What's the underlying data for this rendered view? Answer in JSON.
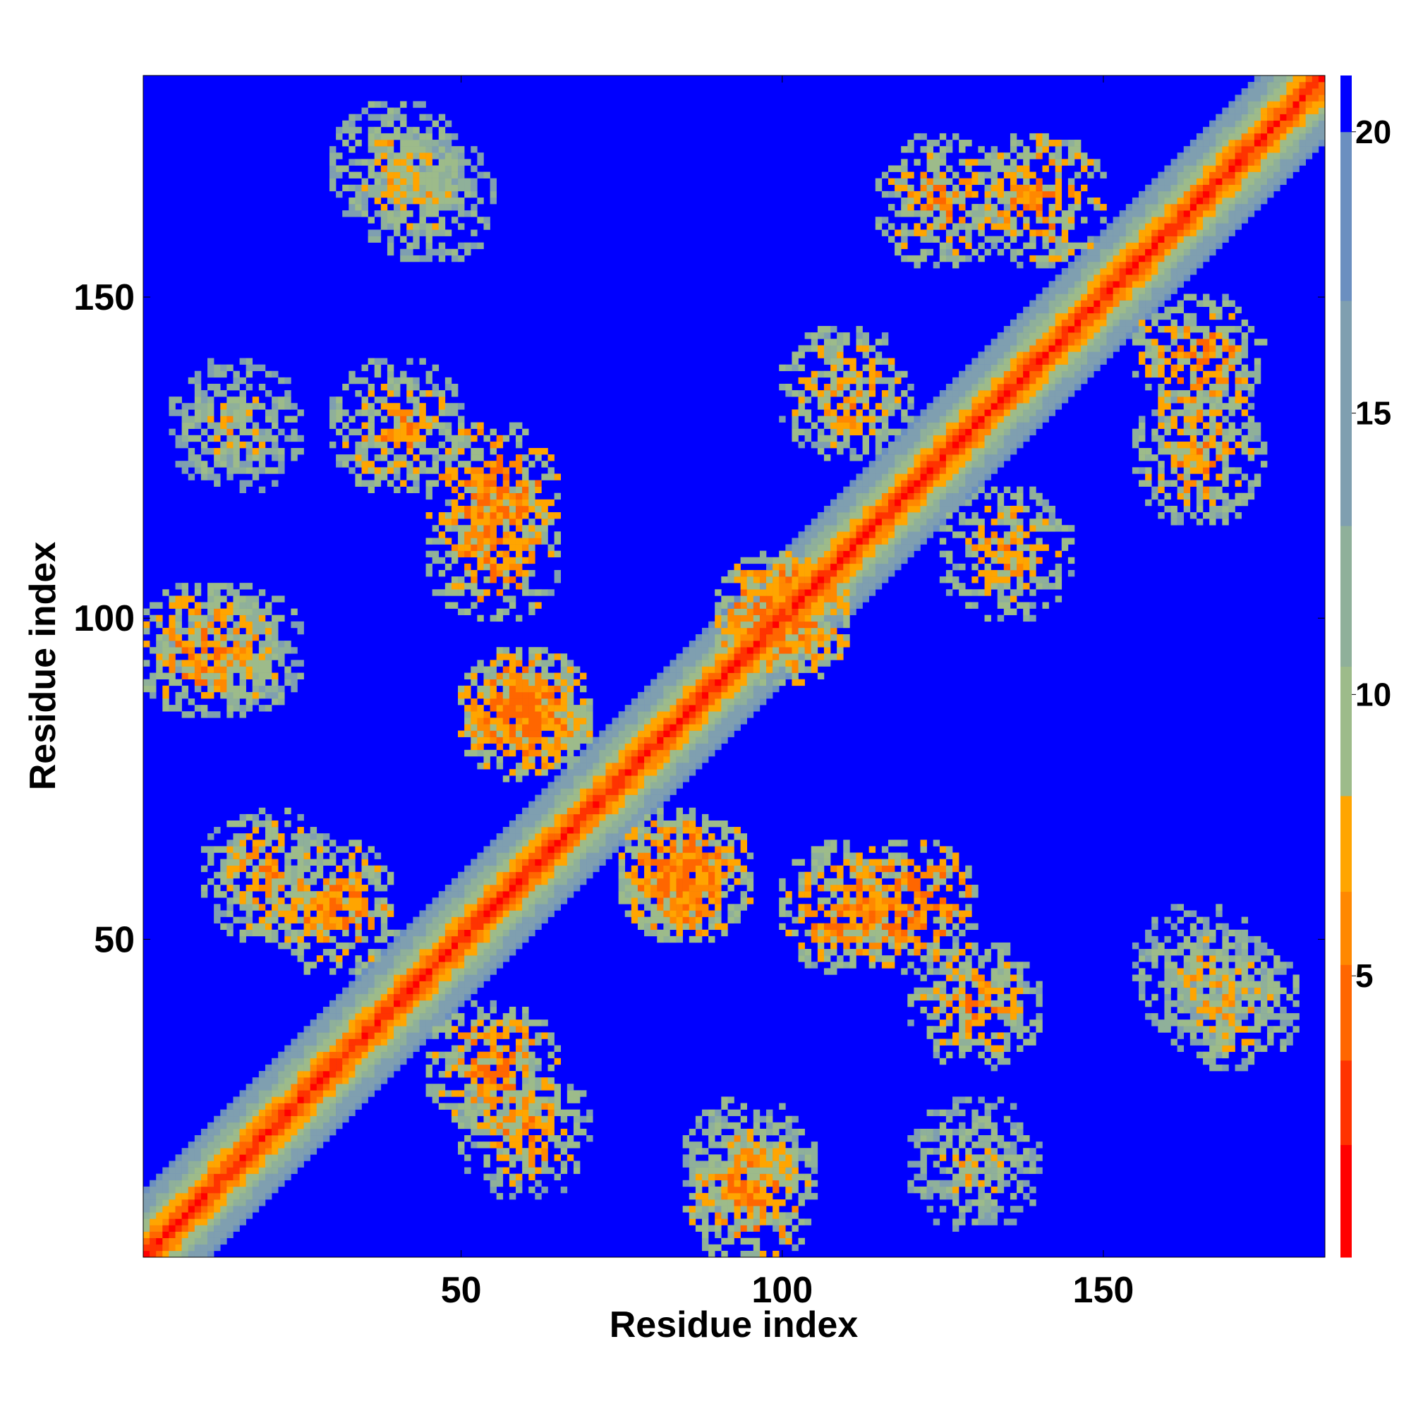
{
  "chart_data": {
    "type": "heatmap",
    "title": "",
    "xlabel": "Residue index",
    "ylabel": "Residue index",
    "xlim": [
      1,
      184
    ],
    "ylim": [
      1,
      184
    ],
    "x_ticks": [
      50,
      100,
      150
    ],
    "y_ticks": [
      50,
      100,
      150
    ],
    "colorbar": {
      "range": [
        0,
        21
      ],
      "ticks": [
        5,
        10,
        15,
        20
      ],
      "colors": [
        "#ff0000",
        "#ff3300",
        "#ff6600",
        "#ff8800",
        "#ffa500",
        "#9dbb8a",
        "#8fb09a",
        "#7f9fb0",
        "#6b8fc0",
        "#0000ff"
      ],
      "bounds": [
        0,
        2,
        3.5,
        5.2,
        6.5,
        8.2,
        10.5,
        13,
        17,
        20,
        21
      ]
    },
    "matrix_description_values": {
      "n_residues": 184,
      "diagonal_distance": 0,
      "off_contact_distance": 21
    },
    "contact_clusters": [
      {
        "x_center": 10,
        "y_center": 95,
        "value": 11
      },
      {
        "x_center": 55,
        "y_center": 120,
        "value": 10
      },
      {
        "x_center": 40,
        "y_center": 170,
        "value": 13
      },
      {
        "x_center": 100,
        "y_center": 100,
        "value": 10
      },
      {
        "x_center": 110,
        "y_center": 55,
        "value": 11
      },
      {
        "x_center": 130,
        "y_center": 40,
        "value": 12
      },
      {
        "x_center": 165,
        "y_center": 125,
        "value": 12
      },
      {
        "x_center": 140,
        "y_center": 165,
        "value": 11
      },
      {
        "x_center": 60,
        "y_center": 20,
        "value": 12
      },
      {
        "x_center": 95,
        "y_center": 15,
        "value": 13
      },
      {
        "x_center": 30,
        "y_center": 55,
        "value": 11
      },
      {
        "x_center": 85,
        "y_center": 60,
        "value": 10
      },
      {
        "x_center": 165,
        "y_center": 45,
        "value": 14
      },
      {
        "x_center": 110,
        "y_center": 135,
        "value": 12
      },
      {
        "x_center": 60,
        "y_center": 85,
        "value": 11
      },
      {
        "x_center": 15,
        "y_center": 130,
        "value": 14
      }
    ]
  }
}
